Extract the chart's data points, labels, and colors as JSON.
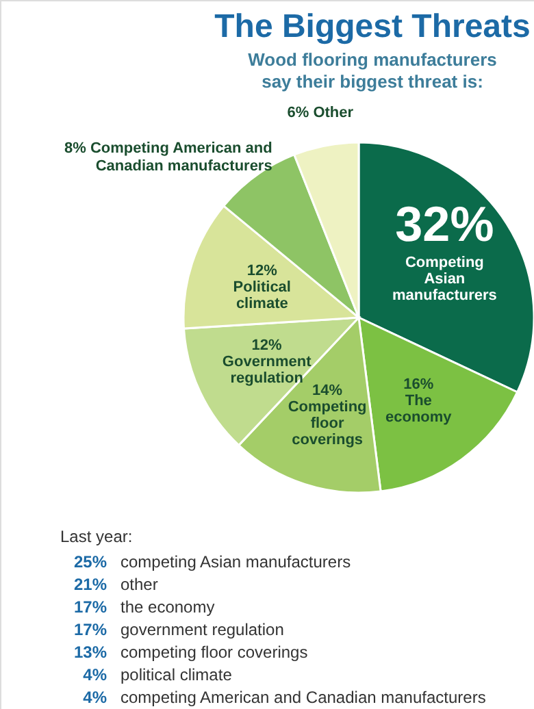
{
  "chart_data": {
    "type": "pie",
    "title": "The Biggest Threats",
    "subtitle": "Wood flooring manufacturers say their biggest threat is:",
    "categories": [
      "Competing Asian manufacturers",
      "The economy",
      "Competing floor coverings",
      "Government regulation",
      "Political climate",
      "Competing American and Canadian manufacturers",
      "Other"
    ],
    "values": [
      32,
      16,
      14,
      12,
      12,
      8,
      6
    ],
    "colors": [
      "#0b6b4b",
      "#7cc143",
      "#a4cd68",
      "#c0dc8e",
      "#d8e49a",
      "#8ec465",
      "#eef2c2"
    ],
    "value_labels": [
      "32%",
      "16%",
      "14%",
      "12%",
      "12%",
      "8%",
      "6%"
    ],
    "annotations": [
      "Last year:",
      "25% competing Asian manufacturers",
      "21% other",
      "17% the economy",
      "17% government regulation",
      "13% competing floor coverings",
      "4% political climate",
      "4% competing American and Canadian manufacturers"
    ]
  }
}
